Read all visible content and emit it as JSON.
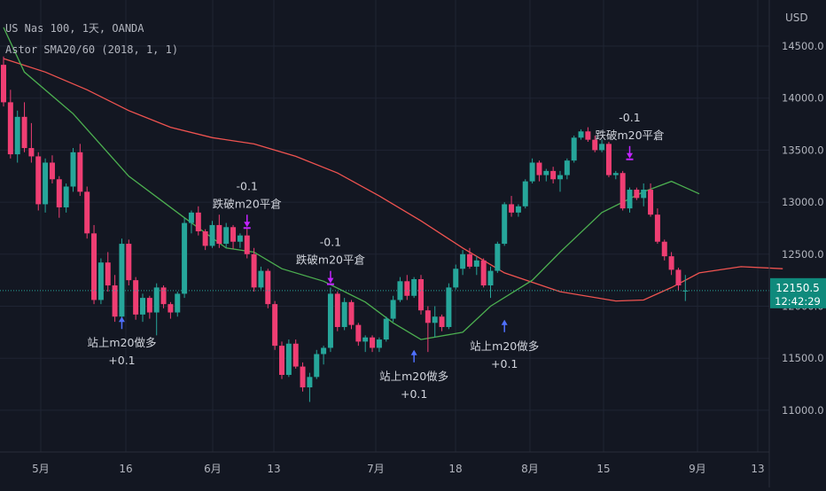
{
  "header": {
    "symbol_line": "US Nas 100, 1天, OANDA",
    "indicator_line": "Astor SMA20/60 (2018, 1, 1)"
  },
  "price_axis": {
    "currency": "USD",
    "ticks": [
      "14500.0",
      "14000.0",
      "13500.0",
      "13000.0",
      "12500.0",
      "12000.0",
      "11500.0",
      "11000.0"
    ]
  },
  "price_badge": {
    "price": "12150.5",
    "time": "12:42:29"
  },
  "time_axis": {
    "ticks": [
      "5月",
      "16",
      "6月",
      "13",
      "7月",
      "18",
      "8月",
      "15",
      "9月",
      "13"
    ]
  },
  "colors": {
    "up": "#26a69a",
    "down": "#ef3e73",
    "sma20": "#4caf50",
    "sma60": "#ef5350",
    "buy_arrow": "#4f70ff",
    "sell_arrow": "#c224ff",
    "badge": "#0f8a7c",
    "background": "#131722"
  },
  "chart_data": {
    "type": "candlestick",
    "symbol": "US Nas 100",
    "interval": "1天",
    "source": "OANDA",
    "ylim": [
      10800,
      14800
    ],
    "y_ticks": [
      14500,
      14000,
      13500,
      13000,
      12500,
      12000,
      11500,
      11000
    ],
    "last_price": 12150.5,
    "candles": [
      [
        14320,
        14400,
        13920,
        13960
      ],
      [
        13960,
        14080,
        13420,
        13460
      ],
      [
        13460,
        13880,
        13380,
        13820
      ],
      [
        13820,
        13960,
        13480,
        13520
      ],
      [
        13520,
        13760,
        13380,
        13440
      ],
      [
        13440,
        13480,
        12920,
        12980
      ],
      [
        12980,
        13420,
        12900,
        13380
      ],
      [
        13380,
        13450,
        13180,
        13220
      ],
      [
        13220,
        13250,
        12850,
        12950
      ],
      [
        12950,
        13180,
        12900,
        13150
      ],
      [
        13150,
        13520,
        13100,
        13480
      ],
      [
        13480,
        13560,
        13060,
        13100
      ],
      [
        13100,
        13150,
        12650,
        12700
      ],
      [
        12700,
        12780,
        12020,
        12060
      ],
      [
        12060,
        12460,
        12020,
        12420
      ],
      [
        12420,
        12520,
        12140,
        12200
      ],
      [
        12200,
        12300,
        11850,
        11900
      ],
      [
        11900,
        12650,
        11880,
        12600
      ],
      [
        12600,
        12640,
        12200,
        12250
      ],
      [
        12250,
        12280,
        11870,
        11920
      ],
      [
        11920,
        12120,
        11850,
        12080
      ],
      [
        12080,
        12100,
        11880,
        11940
      ],
      [
        11940,
        12220,
        11720,
        12180
      ],
      [
        12180,
        12200,
        11980,
        12020
      ],
      [
        12020,
        12040,
        11880,
        11940
      ],
      [
        11940,
        12140,
        11900,
        12120
      ],
      [
        12120,
        12850,
        12080,
        12800
      ],
      [
        12800,
        12920,
        12700,
        12900
      ],
      [
        12900,
        12960,
        12680,
        12720
      ],
      [
        12720,
        12740,
        12540,
        12580
      ],
      [
        12580,
        12820,
        12560,
        12780
      ],
      [
        12780,
        12880,
        12560,
        12600
      ],
      [
        12600,
        12800,
        12560,
        12760
      ],
      [
        12760,
        12780,
        12550,
        12620
      ],
      [
        12620,
        12700,
        12560,
        12680
      ],
      [
        12680,
        12750,
        12460,
        12500
      ],
      [
        12500,
        12560,
        12140,
        12180
      ],
      [
        12180,
        12380,
        12160,
        12340
      ],
      [
        12340,
        12360,
        11980,
        12020
      ],
      [
        12020,
        12050,
        11580,
        11620
      ],
      [
        11620,
        11660,
        11300,
        11340
      ],
      [
        11340,
        11680,
        11320,
        11640
      ],
      [
        11640,
        11680,
        11400,
        11420
      ],
      [
        11420,
        11460,
        11180,
        11220
      ],
      [
        11220,
        11360,
        11080,
        11320
      ],
      [
        11320,
        11580,
        11300,
        11540
      ],
      [
        11540,
        11620,
        11440,
        11600
      ],
      [
        11600,
        12180,
        11560,
        12120
      ],
      [
        12120,
        12140,
        11760,
        11800
      ],
      [
        11800,
        12080,
        11770,
        12040
      ],
      [
        12040,
        12060,
        11780,
        11820
      ],
      [
        11820,
        11840,
        11620,
        11660
      ],
      [
        11660,
        11720,
        11560,
        11700
      ],
      [
        11700,
        11720,
        11560,
        11600
      ],
      [
        11600,
        11700,
        11560,
        11680
      ],
      [
        11680,
        11900,
        11660,
        11880
      ],
      [
        11880,
        12100,
        11850,
        12060
      ],
      [
        12060,
        12280,
        12040,
        12240
      ],
      [
        12240,
        12300,
        12060,
        12100
      ],
      [
        12100,
        12280,
        12080,
        12260
      ],
      [
        12260,
        12300,
        11920,
        11960
      ],
      [
        11960,
        12000,
        11560,
        11840
      ],
      [
        11840,
        12000,
        11700,
        11900
      ],
      [
        11900,
        11920,
        11760,
        11800
      ],
      [
        11800,
        12220,
        11780,
        12180
      ],
      [
        12180,
        12400,
        12160,
        12360
      ],
      [
        12360,
        12540,
        12300,
        12500
      ],
      [
        12500,
        12560,
        12360,
        12380
      ],
      [
        12380,
        12480,
        12300,
        12440
      ],
      [
        12440,
        12460,
        12180,
        12200
      ],
      [
        12200,
        12380,
        12080,
        12340
      ],
      [
        12340,
        12620,
        12320,
        12600
      ],
      [
        12600,
        13000,
        12580,
        12980
      ],
      [
        12980,
        13060,
        12860,
        12900
      ],
      [
        12900,
        12980,
        12860,
        12960
      ],
      [
        12960,
        13220,
        12940,
        13200
      ],
      [
        13200,
        13420,
        13180,
        13380
      ],
      [
        13380,
        13400,
        13200,
        13260
      ],
      [
        13260,
        13320,
        13200,
        13300
      ],
      [
        13300,
        13340,
        13180,
        13220
      ],
      [
        13220,
        13300,
        13100,
        13260
      ],
      [
        13260,
        13420,
        13220,
        13400
      ],
      [
        13400,
        13640,
        13380,
        13620
      ],
      [
        13620,
        13700,
        13600,
        13680
      ],
      [
        13680,
        13720,
        13580,
        13600
      ],
      [
        13600,
        13640,
        13480,
        13500
      ],
      [
        13500,
        13600,
        13480,
        13560
      ],
      [
        13560,
        13580,
        13240,
        13260
      ],
      [
        13260,
        13300,
        13220,
        13280
      ],
      [
        13280,
        13300,
        12920,
        12940
      ],
      [
        12940,
        13140,
        12900,
        13120
      ],
      [
        13120,
        13140,
        13020,
        13040
      ],
      [
        13040,
        13180,
        12960,
        13120
      ],
      [
        13120,
        13180,
        12860,
        12880
      ],
      [
        12880,
        12940,
        12600,
        12620
      ],
      [
        12620,
        12640,
        12440,
        12480
      ],
      [
        12480,
        12520,
        12300,
        12350
      ],
      [
        12350,
        12370,
        12150,
        12200
      ],
      [
        12150,
        12300,
        12050,
        12150
      ]
    ],
    "sma20": [
      [
        0,
        14680
      ],
      [
        3,
        14250
      ],
      [
        10,
        13850
      ],
      [
        18,
        13250
      ],
      [
        26,
        12850
      ],
      [
        32,
        12560
      ],
      [
        36,
        12520
      ],
      [
        40,
        12360
      ],
      [
        46,
        12240
      ],
      [
        52,
        12040
      ],
      [
        56,
        11840
      ],
      [
        60,
        11680
      ],
      [
        66,
        11750
      ],
      [
        70,
        12000
      ],
      [
        76,
        12250
      ],
      [
        80,
        12520
      ],
      [
        86,
        12900
      ],
      [
        92,
        13100
      ],
      [
        96,
        13200
      ],
      [
        100,
        13080
      ]
    ],
    "sma60": [
      [
        0,
        14380
      ],
      [
        6,
        14250
      ],
      [
        12,
        14080
      ],
      [
        18,
        13880
      ],
      [
        24,
        13720
      ],
      [
        30,
        13620
      ],
      [
        36,
        13560
      ],
      [
        42,
        13440
      ],
      [
        48,
        13280
      ],
      [
        54,
        13060
      ],
      [
        60,
        12820
      ],
      [
        66,
        12560
      ],
      [
        72,
        12320
      ],
      [
        80,
        12140
      ],
      [
        88,
        12050
      ],
      [
        92,
        12060
      ],
      [
        96,
        12180
      ],
      [
        100,
        12320
      ],
      [
        106,
        12380
      ],
      [
        112,
        12360
      ]
    ],
    "signals": [
      {
        "type": "buy",
        "bar": 17,
        "price": 11900,
        "lines": [
          "站上m20做多",
          "+0.1"
        ]
      },
      {
        "type": "sell",
        "bar": 35,
        "price": 12760,
        "lines": [
          "-0.1",
          "跌破m20平倉"
        ]
      },
      {
        "type": "sell",
        "bar": 47,
        "price": 12220,
        "lines": [
          "-0.1",
          "跌破m20平倉"
        ]
      },
      {
        "type": "buy",
        "bar": 59,
        "price": 11580,
        "lines": [
          "站上m20做多",
          "+0.1"
        ]
      },
      {
        "type": "buy",
        "bar": 72,
        "price": 11870,
        "lines": [
          "站上m20做多",
          "+0.1"
        ]
      },
      {
        "type": "sell",
        "bar": 90,
        "price": 13420,
        "lines": [
          "-0.1",
          "跌破m20平倉"
        ]
      }
    ]
  }
}
